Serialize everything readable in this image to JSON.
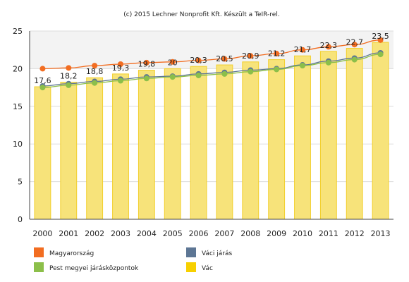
{
  "chart_data": {
    "type": "bar",
    "subtitle": "(c) 2015 Lechner Nonprofit Kft. Készült a TeIR-rel.",
    "categories": [
      "2000",
      "2001",
      "2002",
      "2003",
      "2004",
      "2005",
      "2006",
      "2007",
      "2008",
      "2009",
      "2010",
      "2011",
      "2012",
      "2013"
    ],
    "ylim": [
      0,
      25
    ],
    "yticks": [
      0,
      5,
      10,
      15,
      20,
      25
    ],
    "grid": true,
    "legend_position": "bottom",
    "series": [
      {
        "name": "Vác",
        "type": "bar",
        "color": "#f7e37a",
        "values": [
          17.6,
          18.2,
          18.8,
          19.3,
          19.8,
          20.0,
          20.3,
          20.5,
          20.9,
          21.2,
          21.7,
          22.3,
          22.7,
          23.5
        ],
        "labels": [
          "17,6",
          "18,2",
          "18,8",
          "19,3",
          "19,8",
          "20",
          "20,3",
          "20,5",
          "20,9",
          "21,2",
          "21,7",
          "22,3",
          "22,7",
          "23,5"
        ]
      },
      {
        "name": "Magyarország",
        "type": "line",
        "color": "#f26d21",
        "values": [
          20.0,
          20.1,
          20.4,
          20.6,
          20.8,
          20.9,
          21.1,
          21.3,
          21.7,
          22.0,
          22.5,
          22.9,
          23.2,
          23.8
        ]
      },
      {
        "name": "Váci járás",
        "type": "line",
        "color": "#5d7694",
        "values": [
          17.7,
          18.0,
          18.3,
          18.6,
          18.9,
          19.0,
          19.3,
          19.5,
          19.8,
          20.0,
          20.5,
          21.0,
          21.4,
          22.1
        ]
      },
      {
        "name": "Pest megyei járásközpontok",
        "type": "line",
        "color": "#8cbf4a",
        "values": [
          17.5,
          17.8,
          18.1,
          18.4,
          18.7,
          18.9,
          19.1,
          19.3,
          19.6,
          19.9,
          20.4,
          20.8,
          21.2,
          21.9
        ]
      }
    ],
    "legend": [
      {
        "name": "Magyarország",
        "color": "#f26d21"
      },
      {
        "name": "Váci járás",
        "color": "#5d7694"
      },
      {
        "name": "Pest megyei járásközpontok",
        "color": "#8cbf4a"
      },
      {
        "name": "Vác",
        "color": "#f7d000"
      }
    ]
  }
}
